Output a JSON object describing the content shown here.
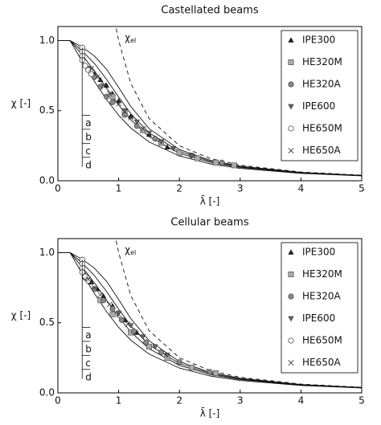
{
  "chart_data": [
    {
      "type": "scatter",
      "title": "Castellated beams",
      "xlabel": "λ̄ [-]",
      "ylabel": "χ [-]",
      "xlim": [
        0,
        5
      ],
      "ylim": [
        0,
        1.1
      ],
      "xticks": [
        0,
        1,
        2,
        3,
        4,
        5
      ],
      "yticks": [
        {
          "value": 0,
          "label": "0.0"
        },
        0.5,
        {
          "value": 1,
          "label": "1.0"
        }
      ],
      "legend": "upper right",
      "curves": [
        {
          "name": "a",
          "dash": false,
          "x": [
            0,
            0.2,
            0.4,
            0.6,
            0.8,
            1.0,
            1.2,
            1.5,
            2.0,
            2.5,
            3.0,
            4.0,
            5.0
          ],
          "values": [
            1,
            1,
            0.953,
            0.89,
            0.796,
            0.666,
            0.53,
            0.372,
            0.223,
            0.147,
            0.104,
            0.0594,
            0.0384
          ]
        },
        {
          "name": "b",
          "dash": false,
          "x": [
            0,
            0.2,
            0.4,
            0.6,
            0.8,
            1.0,
            1.2,
            1.5,
            2.0,
            2.5,
            3.0,
            4.0,
            5.0
          ],
          "values": [
            1,
            1,
            0.926,
            0.837,
            0.724,
            0.597,
            0.478,
            0.342,
            0.209,
            0.14,
            0.0994,
            0.0576,
            0.0375
          ]
        },
        {
          "name": "c",
          "dash": false,
          "x": [
            0,
            0.2,
            0.4,
            0.6,
            0.8,
            1.0,
            1.2,
            1.5,
            2.0,
            2.5,
            3.0,
            4.0,
            5.0
          ],
          "values": [
            1,
            1,
            0.897,
            0.785,
            0.662,
            0.54,
            0.434,
            0.315,
            0.196,
            0.132,
            0.0951,
            0.0556,
            0.0364
          ]
        },
        {
          "name": "d",
          "dash": false,
          "x": [
            0,
            0.2,
            0.4,
            0.6,
            0.8,
            1.0,
            1.2,
            1.5,
            2.0,
            2.5,
            3.0,
            4.0,
            5.0
          ],
          "values": [
            1,
            1,
            0.85,
            0.71,
            0.58,
            0.467,
            0.376,
            0.277,
            0.177,
            0.121,
            0.0882,
            0.0525,
            0.0347
          ]
        },
        {
          "name": "χ",
          "subscript": "el",
          "dash": true,
          "x": [
            0.96,
            1.0,
            1.2,
            1.5,
            2.0,
            2.5,
            3.0,
            4.0,
            5.0
          ],
          "values": [
            1.085,
            1.0,
            0.694,
            0.444,
            0.25,
            0.16,
            0.111,
            0.0625,
            0.04
          ]
        }
      ],
      "series": [
        {
          "name": "IPE300",
          "marker": "triangle-up",
          "color": "#222222",
          "x": [
            0.6,
            0.7,
            0.8,
            0.9,
            1.0,
            1.2,
            1.5,
            1.8
          ],
          "values": [
            0.76,
            0.72,
            0.68,
            0.62,
            0.57,
            0.46,
            0.33,
            0.24
          ]
        },
        {
          "name": "HE320M",
          "marker": "square",
          "color": "#aaaaaa",
          "x": [
            0.9,
            1.1,
            1.4,
            1.7,
            2.0,
            2.3,
            2.6,
            2.9
          ],
          "values": [
            0.6,
            0.49,
            0.36,
            0.27,
            0.2,
            0.16,
            0.13,
            0.11
          ]
        },
        {
          "name": "HE320A",
          "marker": "circle",
          "color": "#888888",
          "x": [
            0.5,
            0.6,
            0.7,
            0.8,
            0.9,
            1.1,
            1.3,
            1.6,
            2.2,
            2.7
          ],
          "values": [
            0.8,
            0.74,
            0.67,
            0.6,
            0.56,
            0.47,
            0.39,
            0.3,
            0.18,
            0.13
          ]
        },
        {
          "name": "IPE600",
          "marker": "triangle-down",
          "color": "#666666",
          "x": [
            1.1,
            1.3,
            1.5,
            1.7,
            1.9,
            2.2
          ],
          "values": [
            0.5,
            0.42,
            0.34,
            0.28,
            0.23,
            0.18
          ]
        },
        {
          "name": "HE650M",
          "marker": "open-circle",
          "color": "#333333",
          "x": [
            0.4,
            0.4,
            0.4,
            0.4,
            0.45,
            0.5,
            0.55
          ],
          "values": [
            0.95,
            0.92,
            0.89,
            0.86,
            0.82,
            0.79,
            0.76
          ]
        },
        {
          "name": "HE650A",
          "marker": "cross",
          "color": "#333333",
          "x": [
            0.55,
            0.65,
            0.75,
            0.85,
            1.0,
            1.2,
            1.4
          ],
          "values": [
            0.8,
            0.74,
            0.68,
            0.62,
            0.55,
            0.45,
            0.37
          ]
        }
      ]
    },
    {
      "type": "scatter",
      "title": "Cellular beams",
      "xlabel": "λ̄ [-]",
      "ylabel": "χ [-]",
      "xlim": [
        0,
        5
      ],
      "ylim": [
        0,
        1.1
      ],
      "xticks": [
        0,
        1,
        2,
        3,
        4,
        5
      ],
      "yticks": [
        {
          "value": 0,
          "label": "0.0"
        },
        0.5,
        {
          "value": 1,
          "label": "1.0"
        }
      ],
      "legend": "upper right",
      "curves": [
        {
          "name": "a",
          "dash": false,
          "x": [
            0,
            0.2,
            0.4,
            0.6,
            0.8,
            1.0,
            1.2,
            1.5,
            2.0,
            2.5,
            3.0,
            4.0,
            5.0
          ],
          "values": [
            1,
            1,
            0.953,
            0.89,
            0.796,
            0.666,
            0.53,
            0.372,
            0.223,
            0.147,
            0.104,
            0.0594,
            0.0384
          ]
        },
        {
          "name": "b",
          "dash": false,
          "x": [
            0,
            0.2,
            0.4,
            0.6,
            0.8,
            1.0,
            1.2,
            1.5,
            2.0,
            2.5,
            3.0,
            4.0,
            5.0
          ],
          "values": [
            1,
            1,
            0.926,
            0.837,
            0.724,
            0.597,
            0.478,
            0.342,
            0.209,
            0.14,
            0.0994,
            0.0576,
            0.0375
          ]
        },
        {
          "name": "c",
          "dash": false,
          "x": [
            0,
            0.2,
            0.4,
            0.6,
            0.8,
            1.0,
            1.2,
            1.5,
            2.0,
            2.5,
            3.0,
            4.0,
            5.0
          ],
          "values": [
            1,
            1,
            0.897,
            0.785,
            0.662,
            0.54,
            0.434,
            0.315,
            0.196,
            0.132,
            0.0951,
            0.0556,
            0.0364
          ]
        },
        {
          "name": "d",
          "dash": false,
          "x": [
            0,
            0.2,
            0.4,
            0.6,
            0.8,
            1.0,
            1.2,
            1.5,
            2.0,
            2.5,
            3.0,
            4.0,
            5.0
          ],
          "values": [
            1,
            1,
            0.85,
            0.71,
            0.58,
            0.467,
            0.376,
            0.277,
            0.177,
            0.121,
            0.0882,
            0.0525,
            0.0347
          ]
        },
        {
          "name": "χ",
          "subscript": "el",
          "dash": true,
          "x": [
            0.96,
            1.0,
            1.2,
            1.5,
            2.0,
            2.5,
            3.0,
            4.0,
            5.0
          ],
          "values": [
            1.085,
            1.0,
            0.694,
            0.444,
            0.25,
            0.16,
            0.111,
            0.0625,
            0.04
          ]
        }
      ],
      "series": [
        {
          "name": "IPE300",
          "marker": "triangle-up",
          "color": "#222222",
          "x": [
            0.45,
            0.55,
            0.65,
            0.75,
            0.9,
            1.1,
            1.3
          ],
          "values": [
            0.84,
            0.79,
            0.74,
            0.69,
            0.62,
            0.52,
            0.43
          ]
        },
        {
          "name": "HE320M",
          "marker": "square",
          "color": "#aaaaaa",
          "x": [
            0.7,
            0.9,
            1.2,
            1.5,
            1.8,
            2.2,
            2.6
          ],
          "values": [
            0.66,
            0.56,
            0.43,
            0.33,
            0.25,
            0.18,
            0.14
          ]
        },
        {
          "name": "HE320A",
          "marker": "circle",
          "color": "#888888",
          "x": [
            0.45,
            0.6,
            0.75,
            0.9,
            1.05,
            1.25,
            1.45,
            1.7,
            2.0,
            2.5
          ],
          "values": [
            0.82,
            0.74,
            0.66,
            0.6,
            0.52,
            0.44,
            0.36,
            0.29,
            0.22,
            0.15
          ]
        },
        {
          "name": "IPE600",
          "marker": "triangle-down",
          "color": "#666666",
          "x": [
            1.0,
            1.2,
            1.4,
            1.6,
            1.8
          ],
          "values": [
            0.57,
            0.48,
            0.4,
            0.33,
            0.27
          ]
        },
        {
          "name": "HE650M",
          "marker": "open-circle",
          "color": "#333333",
          "x": [
            0.4,
            0.4,
            0.4,
            0.4,
            0.45,
            0.5
          ],
          "values": [
            0.95,
            0.92,
            0.89,
            0.86,
            0.83,
            0.8
          ]
        },
        {
          "name": "HE650A",
          "marker": "cross",
          "color": "#333333",
          "x": [
            0.5,
            0.6,
            0.7,
            0.85,
            1.0,
            1.15
          ],
          "values": [
            0.81,
            0.75,
            0.7,
            0.63,
            0.56,
            0.49
          ]
        }
      ]
    }
  ]
}
